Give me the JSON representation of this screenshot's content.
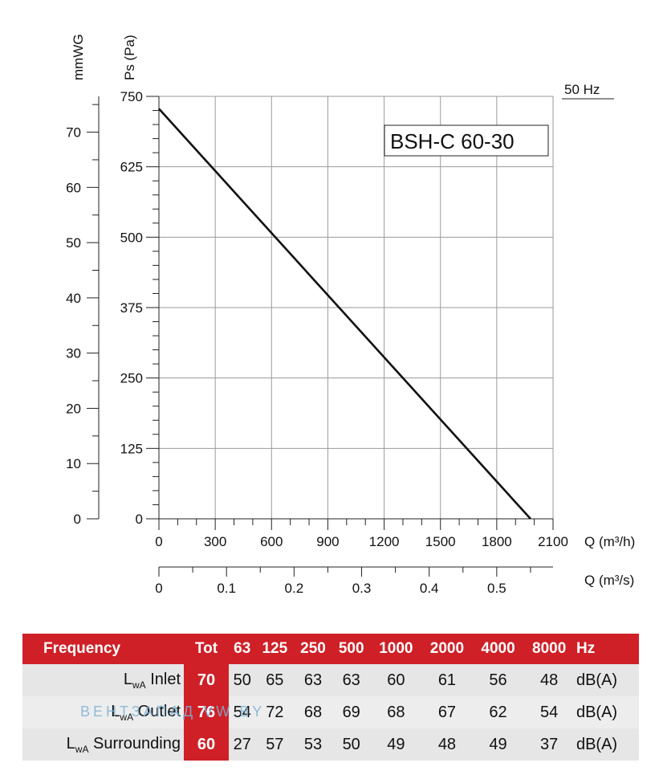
{
  "chart_data": {
    "type": "line",
    "title": "BSH-C 60-30",
    "frequency_label": "50 Hz",
    "y_left_unit": "mmWG",
    "y_right_label": "Ps (Pa)",
    "x_label": "Q (m³/h)",
    "x2_label": "Q (m³/s)",
    "ylim": [
      0,
      750
    ],
    "xlim": [
      0,
      2100
    ],
    "y_ticks": [
      "0",
      "125",
      "250",
      "375",
      "500",
      "625",
      "750"
    ],
    "y_mmwg_ticks": [
      "0",
      "10",
      "20",
      "30",
      "40",
      "50",
      "60",
      "70"
    ],
    "x_ticks": [
      "0",
      "300",
      "600",
      "900",
      "1200",
      "1500",
      "1800",
      "2100"
    ],
    "x2_ticks": [
      "0",
      "0.1",
      "0.2",
      "0.3",
      "0.4",
      "0.5"
    ],
    "grid": true,
    "series": [
      {
        "x": [
          0,
          1980
        ],
        "y": [
          728,
          0
        ]
      }
    ]
  },
  "table": {
    "header": [
      "Frequency",
      "Tot",
      "63",
      "125",
      "250",
      "500",
      "1000",
      "2000",
      "4000",
      "8000",
      "Hz"
    ],
    "rows": [
      {
        "l": "L",
        "sub": "wA",
        "label": " Inlet",
        "tot": "70",
        "values": [
          "50",
          "65",
          "63",
          "63",
          "60",
          "61",
          "56",
          "48"
        ],
        "unit": "dB(A)"
      },
      {
        "l": "L",
        "sub": "wA",
        "label": " Outlet",
        "tot": "76",
        "values": [
          "54",
          "72",
          "68",
          "69",
          "68",
          "67",
          "62",
          "54"
        ],
        "unit": "dB(A)"
      },
      {
        "l": "L",
        "sub": "wA",
        "label": " Surrounding",
        "tot": "60",
        "values": [
          "27",
          "57",
          "53",
          "50",
          "49",
          "48",
          "49",
          "37"
        ],
        "unit": "dB(A)"
      }
    ]
  },
  "watermark": "ВЕНТЗАПАД  VW.BY"
}
